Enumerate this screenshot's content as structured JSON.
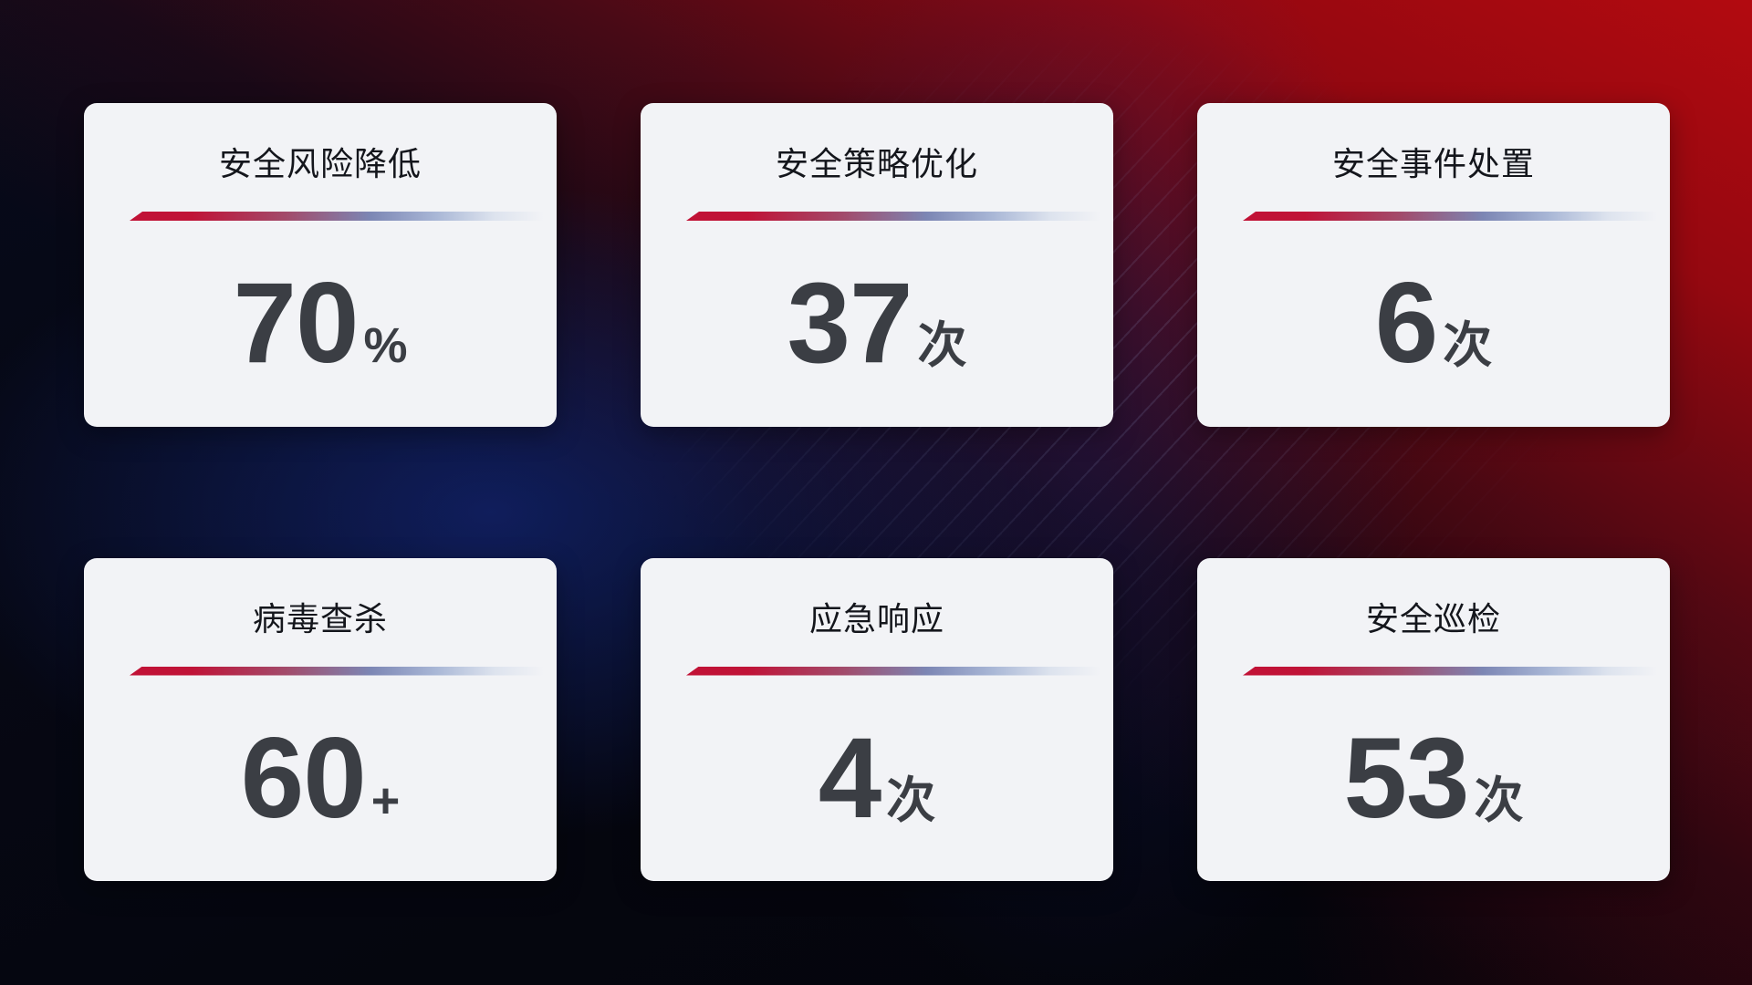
{
  "dashboard": {
    "description": "security operations stat cards",
    "cards": [
      {
        "title": "安全风险降低",
        "value": "70",
        "suffix": "%"
      },
      {
        "title": "安全策略优化",
        "value": "37",
        "suffix": "次"
      },
      {
        "title": "安全事件处置",
        "value": "6",
        "suffix": "次"
      },
      {
        "title": "病毒查杀",
        "value": "60",
        "suffix": "+"
      },
      {
        "title": "应急响应",
        "value": "4",
        "suffix": "次"
      },
      {
        "title": "安全巡检",
        "value": "53",
        "suffix": "次"
      }
    ]
  },
  "colors": {
    "card_background": "#f2f3f6",
    "title_text": "#14161c",
    "value_text": "#3b3e44",
    "divider_red": "#c11236",
    "divider_blue": "#7c86b4",
    "divider_light": "#dde3ee",
    "bg_base": "#06070f",
    "bg_red": "#b60a10",
    "bg_blue": "#183098",
    "bg_maroon": "#4e0612"
  }
}
